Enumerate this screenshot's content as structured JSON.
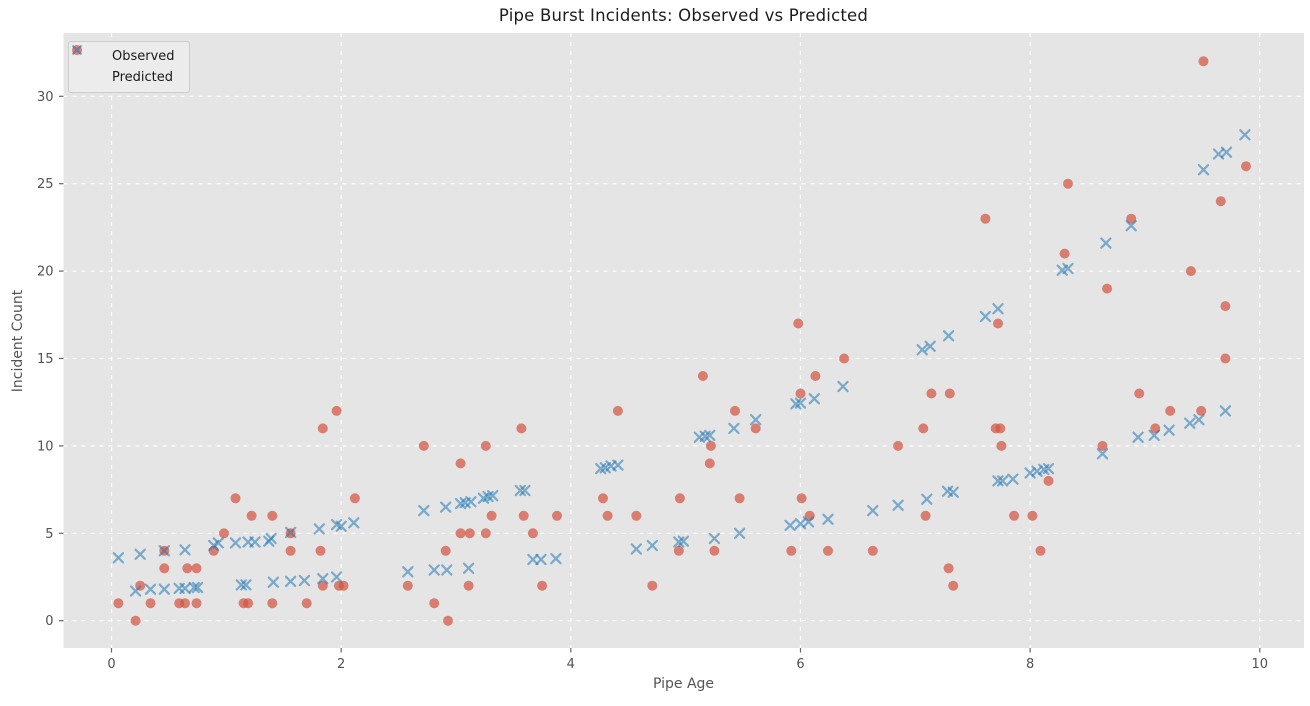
{
  "title": "Pipe Burst Incidents: Observed vs Predicted",
  "x_axis": {
    "label": "Pipe Age",
    "ticks": [
      0,
      2,
      4,
      6,
      8,
      10
    ],
    "range": [
      -0.42,
      10.38
    ],
    "grid": true
  },
  "y_axis": {
    "label": "Incident Count",
    "ticks": [
      0,
      5,
      10,
      15,
      20,
      25,
      30
    ],
    "range": [
      -1.56,
      33.6
    ],
    "grid": true
  },
  "legend": {
    "position": "upper-left",
    "items": [
      {
        "label": "Observed",
        "marker": "circle",
        "color": "#d35442"
      },
      {
        "label": "Predicted",
        "marker": "x",
        "color": "#1f77b4"
      }
    ]
  },
  "colors": {
    "plot_background": "#e5e5e5",
    "figure_background": "#ffffff",
    "gridline": "#ffffff",
    "observed": "#d35442",
    "predicted": "#1f77b4",
    "tick_text": "#525252",
    "axis_label_text": "#555555",
    "title_text": "#1c1c1c"
  },
  "chart_data": {
    "type": "scatter",
    "title": "Pipe Burst Incidents: Observed vs Predicted",
    "xlabel": "Pipe Age",
    "ylabel": "Incident Count",
    "xlim": [
      -0.42,
      10.38
    ],
    "ylim": [
      -1.56,
      33.6
    ],
    "grid": true,
    "legend_position": "upper-left",
    "series": [
      {
        "name": "Observed",
        "marker": "circle",
        "color": "#d35442",
        "points": [
          [
            0.06,
            1
          ],
          [
            0.21,
            0
          ],
          [
            0.25,
            2
          ],
          [
            0.34,
            1
          ],
          [
            0.46,
            4
          ],
          [
            0.46,
            3
          ],
          [
            0.59,
            1
          ],
          [
            0.64,
            1
          ],
          [
            0.66,
            3
          ],
          [
            0.74,
            3
          ],
          [
            0.74,
            1
          ],
          [
            0.89,
            4
          ],
          [
            0.98,
            5
          ],
          [
            1.08,
            7
          ],
          [
            1.15,
            1
          ],
          [
            1.19,
            1
          ],
          [
            1.22,
            6
          ],
          [
            1.4,
            6
          ],
          [
            1.4,
            1
          ],
          [
            1.56,
            5
          ],
          [
            1.56,
            4
          ],
          [
            1.7,
            1
          ],
          [
            1.82,
            4
          ],
          [
            1.84,
            11
          ],
          [
            1.84,
            2
          ],
          [
            1.96,
            12
          ],
          [
            1.98,
            2
          ],
          [
            2.02,
            2
          ],
          [
            2.12,
            7
          ],
          [
            2.58,
            2
          ],
          [
            2.72,
            10
          ],
          [
            2.81,
            1
          ],
          [
            2.91,
            4
          ],
          [
            2.93,
            0
          ],
          [
            3.04,
            9
          ],
          [
            3.04,
            5
          ],
          [
            3.11,
            2
          ],
          [
            3.12,
            5
          ],
          [
            3.26,
            10
          ],
          [
            3.26,
            5
          ],
          [
            3.31,
            6
          ],
          [
            3.57,
            11
          ],
          [
            3.59,
            6
          ],
          [
            3.67,
            5
          ],
          [
            3.75,
            2
          ],
          [
            3.88,
            6
          ],
          [
            4.28,
            7
          ],
          [
            4.32,
            6
          ],
          [
            4.41,
            12
          ],
          [
            4.57,
            6
          ],
          [
            4.71,
            2
          ],
          [
            4.94,
            4
          ],
          [
            4.95,
            7
          ],
          [
            5.15,
            14
          ],
          [
            5.21,
            9
          ],
          [
            5.22,
            10
          ],
          [
            5.25,
            4
          ],
          [
            5.43,
            12
          ],
          [
            5.47,
            7
          ],
          [
            5.61,
            11
          ],
          [
            5.92,
            4
          ],
          [
            5.98,
            17
          ],
          [
            6.0,
            13
          ],
          [
            6.01,
            7
          ],
          [
            6.08,
            6
          ],
          [
            6.13,
            14
          ],
          [
            6.24,
            4
          ],
          [
            6.38,
            15
          ],
          [
            6.63,
            4
          ],
          [
            6.85,
            10
          ],
          [
            7.07,
            11
          ],
          [
            7.09,
            6
          ],
          [
            7.14,
            13
          ],
          [
            7.29,
            3
          ],
          [
            7.3,
            13
          ],
          [
            7.33,
            2
          ],
          [
            7.61,
            23
          ],
          [
            7.7,
            11
          ],
          [
            7.74,
            11
          ],
          [
            7.72,
            17
          ],
          [
            7.75,
            10
          ],
          [
            7.86,
            6
          ],
          [
            8.02,
            6
          ],
          [
            8.09,
            4
          ],
          [
            8.16,
            8
          ],
          [
            8.3,
            21
          ],
          [
            8.33,
            25
          ],
          [
            8.63,
            10
          ],
          [
            8.67,
            19
          ],
          [
            8.88,
            23
          ],
          [
            8.95,
            13
          ],
          [
            9.09,
            11
          ],
          [
            9.22,
            12
          ],
          [
            9.4,
            20
          ],
          [
            9.49,
            12
          ],
          [
            9.51,
            32
          ],
          [
            9.66,
            24
          ],
          [
            9.7,
            18
          ],
          [
            9.7,
            15
          ],
          [
            9.88,
            26
          ]
        ]
      },
      {
        "name": "Predicted",
        "marker": "x",
        "color": "#1f77b4",
        "points": [
          [
            0.06,
            3.6
          ],
          [
            0.21,
            1.7
          ],
          [
            0.25,
            3.8
          ],
          [
            0.34,
            1.8
          ],
          [
            0.46,
            4.0
          ],
          [
            0.46,
            1.8
          ],
          [
            0.59,
            1.85
          ],
          [
            0.64,
            4.05
          ],
          [
            0.64,
            1.85
          ],
          [
            0.72,
            1.9
          ],
          [
            0.75,
            1.9
          ],
          [
            0.89,
            4.3
          ],
          [
            0.93,
            4.45
          ],
          [
            1.08,
            4.45
          ],
          [
            1.13,
            2.05
          ],
          [
            1.17,
            2.05
          ],
          [
            1.19,
            4.5
          ],
          [
            1.25,
            4.5
          ],
          [
            1.37,
            4.55
          ],
          [
            1.39,
            4.7
          ],
          [
            1.41,
            2.2
          ],
          [
            1.56,
            5.05
          ],
          [
            1.56,
            2.25
          ],
          [
            1.68,
            2.3
          ],
          [
            1.81,
            5.25
          ],
          [
            1.84,
            2.4
          ],
          [
            1.96,
            5.5
          ],
          [
            1.96,
            2.5
          ],
          [
            2.0,
            5.4
          ],
          [
            2.11,
            5.6
          ],
          [
            2.58,
            2.8
          ],
          [
            2.72,
            6.3
          ],
          [
            2.81,
            2.9
          ],
          [
            2.91,
            6.5
          ],
          [
            2.92,
            2.9
          ],
          [
            3.04,
            6.7
          ],
          [
            3.08,
            6.75
          ],
          [
            3.11,
            3.0
          ],
          [
            3.13,
            6.8
          ],
          [
            3.24,
            7.0
          ],
          [
            3.28,
            7.1
          ],
          [
            3.32,
            7.15
          ],
          [
            3.56,
            7.45
          ],
          [
            3.6,
            7.45
          ],
          [
            3.67,
            3.5
          ],
          [
            3.74,
            3.5
          ],
          [
            3.87,
            3.55
          ],
          [
            4.26,
            8.7
          ],
          [
            4.3,
            8.75
          ],
          [
            4.35,
            8.85
          ],
          [
            4.41,
            8.9
          ],
          [
            4.57,
            4.1
          ],
          [
            4.71,
            4.3
          ],
          [
            4.94,
            4.5
          ],
          [
            4.98,
            4.55
          ],
          [
            5.12,
            10.5
          ],
          [
            5.17,
            10.55
          ],
          [
            5.21,
            10.6
          ],
          [
            5.25,
            4.7
          ],
          [
            5.42,
            11.0
          ],
          [
            5.47,
            5.0
          ],
          [
            5.61,
            11.5
          ],
          [
            5.91,
            5.45
          ],
          [
            5.96,
            12.4
          ],
          [
            6.0,
            12.45
          ],
          [
            6.0,
            5.55
          ],
          [
            6.07,
            5.65
          ],
          [
            6.12,
            12.7
          ],
          [
            6.24,
            5.8
          ],
          [
            6.37,
            13.4
          ],
          [
            6.63,
            6.3
          ],
          [
            6.85,
            6.6
          ],
          [
            7.06,
            15.5
          ],
          [
            7.1,
            6.95
          ],
          [
            7.13,
            15.7
          ],
          [
            7.28,
            7.4
          ],
          [
            7.33,
            7.35
          ],
          [
            7.29,
            16.3
          ],
          [
            7.61,
            17.4
          ],
          [
            7.72,
            17.85
          ],
          [
            7.72,
            8.0
          ],
          [
            7.76,
            8.0
          ],
          [
            7.85,
            8.1
          ],
          [
            8.0,
            8.45
          ],
          [
            8.06,
            8.55
          ],
          [
            8.12,
            8.65
          ],
          [
            8.16,
            8.7
          ],
          [
            8.28,
            20.05
          ],
          [
            8.33,
            20.15
          ],
          [
            8.63,
            9.55
          ],
          [
            8.66,
            21.6
          ],
          [
            8.88,
            22.6
          ],
          [
            8.94,
            10.5
          ],
          [
            9.08,
            10.6
          ],
          [
            9.21,
            10.9
          ],
          [
            9.39,
            11.3
          ],
          [
            9.47,
            11.5
          ],
          [
            9.51,
            25.8
          ],
          [
            9.64,
            26.7
          ],
          [
            9.7,
            12.0
          ],
          [
            9.71,
            26.8
          ],
          [
            9.87,
            27.8
          ]
        ]
      }
    ]
  }
}
